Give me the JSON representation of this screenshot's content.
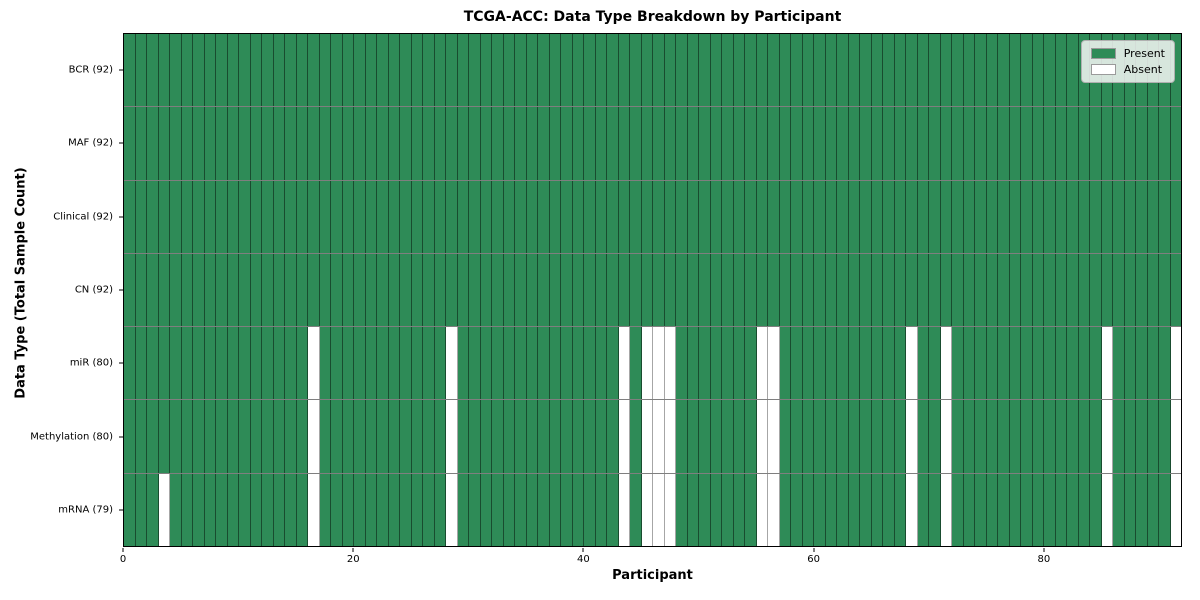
{
  "chart_data": {
    "type": "heatmap",
    "title": "TCGA-ACC: Data Type Breakdown by Participant",
    "xlabel": "Participant",
    "ylabel": "Data Type (Total Sample Count)",
    "n_participants": 92,
    "x_tick_values": [
      0,
      20,
      40,
      60,
      80
    ],
    "x_tick_labels": [
      "0",
      "20",
      "40",
      "60",
      "80"
    ],
    "rows": [
      {
        "label": "BCR (92)",
        "present_count": 92,
        "absent_participants": []
      },
      {
        "label": "MAF (92)",
        "present_count": 92,
        "absent_participants": []
      },
      {
        "label": "Clinical (92)",
        "present_count": 92,
        "absent_participants": []
      },
      {
        "label": "CN (92)",
        "present_count": 92,
        "absent_participants": []
      },
      {
        "label": "miR (80)",
        "present_count": 80,
        "absent_participants": [
          16,
          28,
          43,
          45,
          46,
          47,
          55,
          56,
          68,
          71,
          85,
          91
        ]
      },
      {
        "label": "Methylation (80)",
        "present_count": 80,
        "absent_participants": [
          16,
          28,
          43,
          45,
          46,
          47,
          55,
          56,
          68,
          71,
          85,
          91
        ]
      },
      {
        "label": "mRNA (79)",
        "present_count": 79,
        "absent_participants": [
          3,
          16,
          28,
          43,
          45,
          46,
          47,
          55,
          56,
          68,
          71,
          85,
          91
        ]
      }
    ],
    "legend": [
      {
        "label": "Present",
        "color": "#2e8b57"
      },
      {
        "label": "Absent",
        "color": "#ffffff"
      }
    ],
    "colors": {
      "present": "#2e8b57",
      "absent": "#ffffff",
      "cell_edge": "rgba(0,0,0,0.45)"
    },
    "layout": {
      "legend_position": "upper right",
      "grid": false
    }
  }
}
